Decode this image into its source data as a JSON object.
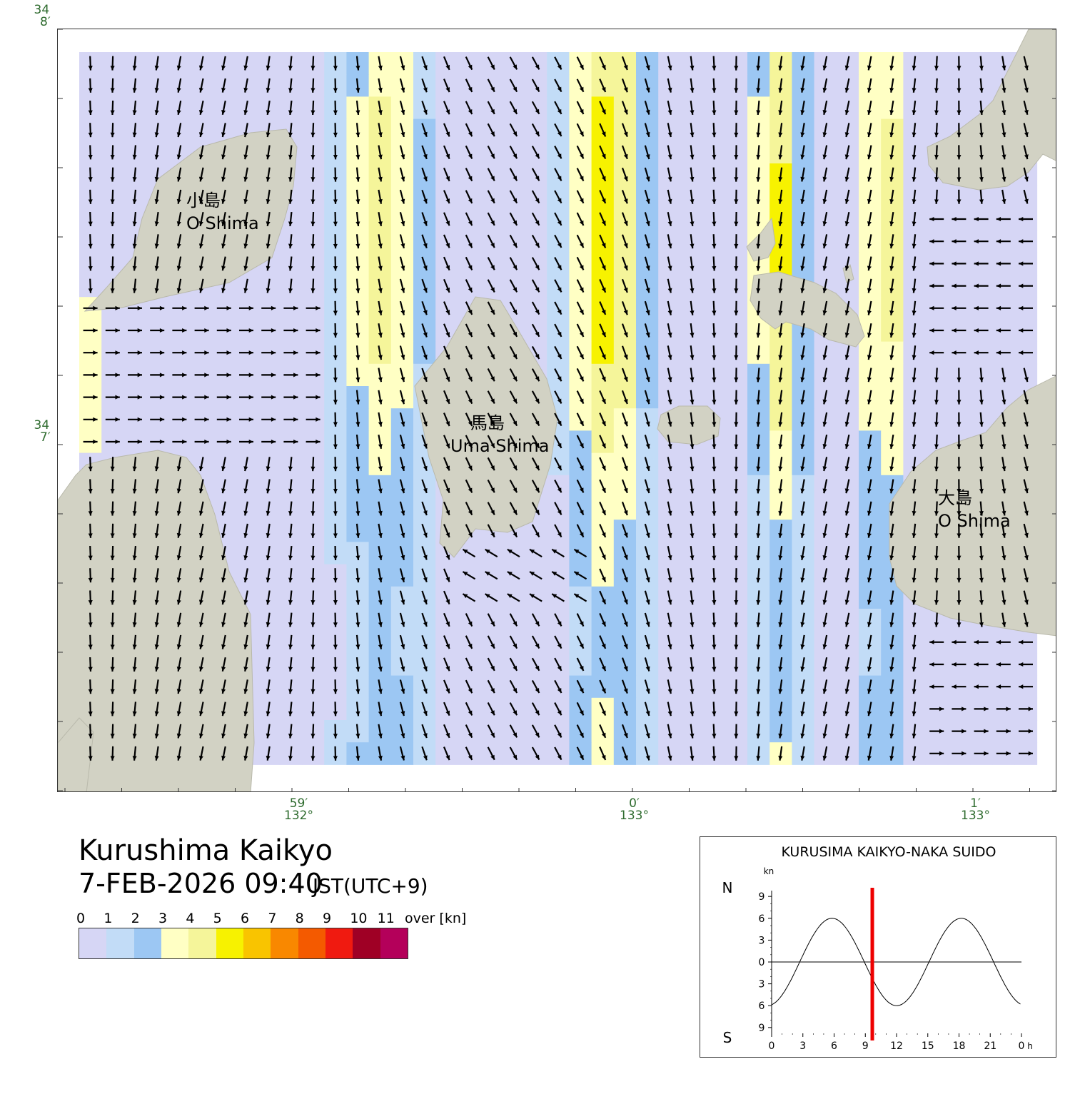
{
  "title": "Kurushima Kaikyo",
  "datetime": "7-FEB-2026 09:40",
  "timezone": "JST(UTC+9)",
  "legend": {
    "labels": [
      "0",
      "1",
      "2",
      "3",
      "4",
      "5",
      "6",
      "7",
      "8",
      "9",
      "10",
      "11",
      "over [kn]"
    ],
    "colors": [
      "#d6d6f5",
      "#c2dcf7",
      "#9cc7f3",
      "#ffffc4",
      "#f5f59a",
      "#f7f200",
      "#f9c400",
      "#f98800",
      "#f45a00",
      "#f01a10",
      "#9f0025",
      "#b4005a"
    ]
  },
  "axes": {
    "lat_labels": [
      {
        "deg": "34",
        "min": "8′"
      },
      {
        "deg": "34",
        "min": "7′"
      }
    ],
    "lon_labels": [
      {
        "min": "59′",
        "deg": "132°"
      },
      {
        "min": "0′",
        "deg": "133°"
      },
      {
        "min": "1′",
        "deg": "133°"
      }
    ]
  },
  "islands": [
    {
      "name_ja": "小島",
      "name_en": "O Shima"
    },
    {
      "name_ja": "馬島",
      "name_en": "Uma Shima"
    },
    {
      "name_ja": "大島",
      "name_en": "O Shima"
    }
  ],
  "land_color": "#d2d2c4",
  "tide_chart": {
    "title": "KURUSIMA KAIKYO-NAKA SUIDO",
    "unit": "kn",
    "north_label": "N",
    "south_label": "S",
    "y_ticks": [
      "9",
      "6",
      "3",
      "0",
      "3",
      "6",
      "9"
    ],
    "x_ticks": [
      "0",
      "3",
      "6",
      "9",
      "12",
      "15",
      "18",
      "21",
      "0"
    ],
    "x_unit": "h",
    "current_time_h": 9.67,
    "marker_color": "#ee0000",
    "curve": {
      "amplitude": 6.0,
      "period_h": 12.42,
      "peak_h": 5.8,
      "type": "line"
    }
  }
}
